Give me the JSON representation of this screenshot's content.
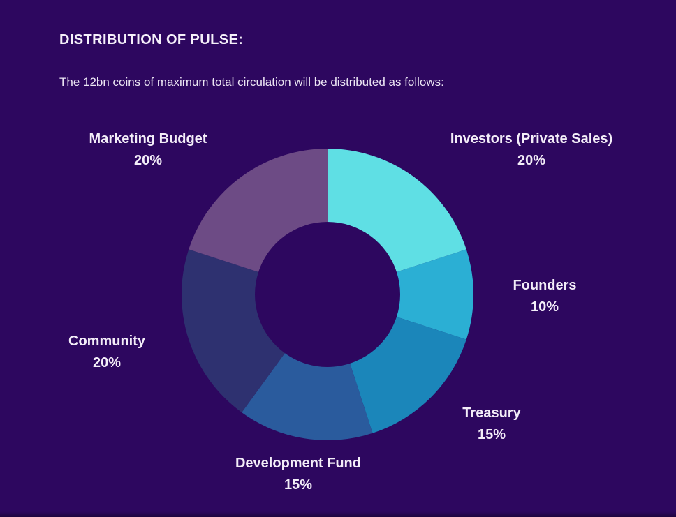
{
  "page": {
    "title": "DISTRIBUTION OF PULSE:",
    "subtitle": "The 12bn coins of maximum total circulation will be distributed as follows:"
  },
  "theme": {
    "background": "#2d075f",
    "text_color": "#f3edf8",
    "donut_hole_color": "#2d075f"
  },
  "chart_data": {
    "type": "pie",
    "variant": "donut",
    "title": "DISTRIBUTION OF PULSE:",
    "subtitle": "The 12bn coins of maximum total circulation will be distributed as follows:",
    "total": 100,
    "units": "%",
    "start_angle_deg": 0,
    "direction": "clockwise",
    "legend_position": "around-chart",
    "segments": [
      {
        "name": "Investors (Private Sales)",
        "value": 20,
        "value_label": "20%",
        "color": "#5fdfe4"
      },
      {
        "name": "Founders",
        "value": 10,
        "value_label": "10%",
        "color": "#2bafd4"
      },
      {
        "name": "Treasury",
        "value": 15,
        "value_label": "15%",
        "color": "#1b86ba"
      },
      {
        "name": "Development Fund",
        "value": 15,
        "value_label": "15%",
        "color": "#2a5b9d"
      },
      {
        "name": "Community",
        "value": 20,
        "value_label": "20%",
        "color": "#2e3170"
      },
      {
        "name": "Marketing Budget",
        "value": 20,
        "value_label": "20%",
        "color": "#6d4b85"
      }
    ]
  }
}
